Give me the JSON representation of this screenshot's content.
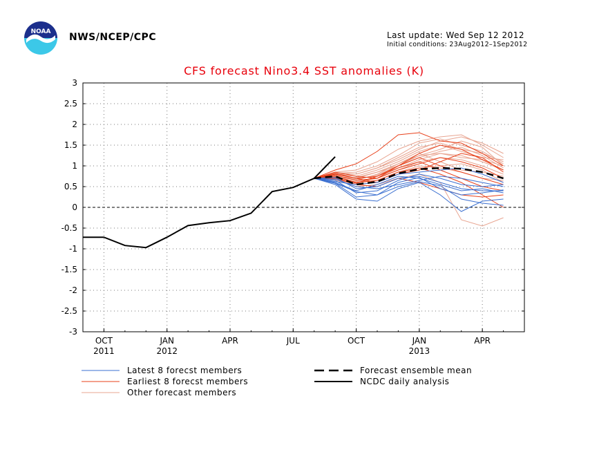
{
  "header": {
    "org": "NWS/NCEP/CPC",
    "last_update": "Last update: Wed Sep 12 2012",
    "initial_conditions": "Initial conditions: 23Aug2012–1Sep2012",
    "logo_icon": "noaa-logo-icon"
  },
  "chart_data": {
    "type": "line",
    "title": "CFS forecast Nino3.4 SST anomalies (K)",
    "xlabel": "",
    "ylabel": "",
    "ylim": [
      -3,
      3
    ],
    "yticks": [
      3,
      2.5,
      2,
      1.5,
      1,
      0.5,
      0,
      -0.5,
      -1,
      -1.5,
      -2,
      -2.5,
      -3
    ],
    "xlim": [
      "2011-09",
      "2013-06"
    ],
    "xticks": [
      {
        "month": "2011-10",
        "label": "OCT",
        "year": "2011"
      },
      {
        "month": "2012-01",
        "label": "JAN",
        "year": "2012"
      },
      {
        "month": "2012-04",
        "label": "APR",
        "year": ""
      },
      {
        "month": "2012-07",
        "label": "JUL",
        "year": ""
      },
      {
        "month": "2012-10",
        "label": "OCT",
        "year": ""
      },
      {
        "month": "2013-01",
        "label": "JAN",
        "year": "2013"
      },
      {
        "month": "2013-04",
        "label": "APR",
        "year": ""
      }
    ],
    "grid": true,
    "zero_line": true,
    "colors": {
      "latest": "#3a6fd0",
      "earliest": "#e8401a",
      "other": "#e8a490",
      "mean": "#000000",
      "obs": "#000000",
      "title": "#e8000b"
    },
    "forecast_months": [
      "2012-08",
      "2012-09",
      "2012-10",
      "2012-11",
      "2012-12",
      "2013-01",
      "2013-02",
      "2013-03",
      "2013-04",
      "2013-05"
    ],
    "series": [
      {
        "name": "NCDC daily analysis",
        "group": "obs",
        "x": [
          "2011-09",
          "2011-10",
          "2011-11",
          "2011-12",
          "2012-01",
          "2012-02",
          "2012-03",
          "2012-04",
          "2012-05",
          "2012-06",
          "2012-07",
          "2012-08",
          "2012-09"
        ],
        "y": [
          -0.72,
          -0.72,
          -0.92,
          -0.97,
          -0.72,
          -0.44,
          -0.37,
          -0.32,
          -0.14,
          0.38,
          0.48,
          0.7,
          1.22
        ]
      },
      {
        "name": "Forecast ensemble mean",
        "group": "mean",
        "y": [
          0.7,
          0.75,
          0.55,
          0.62,
          0.82,
          0.92,
          0.95,
          0.93,
          0.85,
          0.7
        ]
      }
    ],
    "members": [
      {
        "group": "latest",
        "y": [
          0.7,
          0.58,
          0.25,
          0.3,
          0.6,
          0.72,
          0.45,
          0.3,
          0.35,
          0.42
        ]
      },
      {
        "group": "latest",
        "y": [
          0.7,
          0.55,
          0.2,
          0.15,
          0.45,
          0.6,
          0.3,
          -0.1,
          0.15,
          0.2
        ]
      },
      {
        "group": "latest",
        "y": [
          0.7,
          0.65,
          0.35,
          0.4,
          0.65,
          0.8,
          0.7,
          0.55,
          0.5,
          0.55
        ]
      },
      {
        "group": "latest",
        "y": [
          0.7,
          0.72,
          0.45,
          0.5,
          0.7,
          0.75,
          0.6,
          0.45,
          0.4,
          0.4
        ]
      },
      {
        "group": "latest",
        "y": [
          0.7,
          0.6,
          0.4,
          0.55,
          0.75,
          0.7,
          0.55,
          0.4,
          0.45,
          0.35
        ]
      },
      {
        "group": "latest",
        "y": [
          0.7,
          0.68,
          0.5,
          0.45,
          0.55,
          0.65,
          0.75,
          0.7,
          0.6,
          0.5
        ]
      },
      {
        "group": "latest",
        "y": [
          0.7,
          0.62,
          0.55,
          0.6,
          0.8,
          0.85,
          0.9,
          0.95,
          0.8,
          0.6
        ]
      },
      {
        "group": "latest",
        "y": [
          0.7,
          0.58,
          0.38,
          0.3,
          0.5,
          0.62,
          0.52,
          0.2,
          0.1,
          0.05
        ]
      },
      {
        "group": "earliest",
        "y": [
          0.7,
          0.9,
          1.05,
          1.35,
          1.75,
          1.8,
          1.6,
          1.55,
          1.3,
          1.0
        ]
      },
      {
        "group": "earliest",
        "y": [
          0.7,
          0.8,
          0.7,
          0.75,
          1.0,
          1.3,
          1.5,
          1.4,
          1.15,
          0.9
        ]
      },
      {
        "group": "earliest",
        "y": [
          0.7,
          0.75,
          0.6,
          0.65,
          0.85,
          0.95,
          0.8,
          0.6,
          0.3,
          0.0
        ]
      },
      {
        "group": "earliest",
        "y": [
          0.7,
          0.85,
          0.75,
          0.7,
          0.9,
          1.05,
          1.2,
          1.1,
          0.95,
          0.7
        ]
      },
      {
        "group": "earliest",
        "y": [
          0.7,
          0.7,
          0.55,
          0.5,
          0.7,
          0.6,
          0.45,
          0.3,
          0.25,
          0.3
        ]
      },
      {
        "group": "earliest",
        "y": [
          0.7,
          0.78,
          0.65,
          0.7,
          1.0,
          1.2,
          1.0,
          0.85,
          0.7,
          0.55
        ]
      },
      {
        "group": "earliest",
        "y": [
          0.7,
          0.82,
          0.7,
          0.6,
          0.8,
          0.9,
          1.1,
          1.3,
          1.2,
          0.85
        ]
      },
      {
        "group": "earliest",
        "y": [
          0.7,
          0.72,
          0.58,
          0.75,
          0.95,
          1.1,
          0.9,
          0.7,
          0.5,
          0.4
        ]
      },
      {
        "group": "other",
        "y": [
          0.7,
          0.85,
          0.9,
          1.1,
          1.4,
          1.6,
          1.7,
          1.75,
          1.5,
          1.2
        ]
      },
      {
        "group": "other",
        "y": [
          0.7,
          0.8,
          0.8,
          0.95,
          1.2,
          1.45,
          1.55,
          1.4,
          1.3,
          1.1
        ]
      },
      {
        "group": "other",
        "y": [
          0.7,
          0.75,
          0.7,
          0.85,
          1.0,
          1.25,
          1.4,
          1.6,
          1.45,
          1.0
        ]
      },
      {
        "group": "other",
        "y": [
          0.7,
          0.7,
          0.6,
          0.7,
          0.9,
          1.1,
          1.2,
          1.15,
          1.0,
          0.8
        ]
      },
      {
        "group": "other",
        "y": [
          0.7,
          0.78,
          0.65,
          0.8,
          1.05,
          1.3,
          1.1,
          0.9,
          0.85,
          0.75
        ]
      },
      {
        "group": "other",
        "y": [
          0.7,
          0.68,
          0.55,
          0.6,
          0.8,
          0.95,
          1.0,
          1.05,
          0.9,
          0.6
        ]
      },
      {
        "group": "other",
        "y": [
          0.7,
          0.82,
          0.85,
          1.0,
          1.25,
          1.55,
          1.65,
          1.5,
          1.35,
          1.05
        ]
      },
      {
        "group": "other",
        "y": [
          0.7,
          0.74,
          0.62,
          0.7,
          0.95,
          1.15,
          1.3,
          1.25,
          1.1,
          0.9
        ]
      },
      {
        "group": "other",
        "y": [
          0.7,
          0.66,
          0.5,
          0.55,
          0.7,
          0.8,
          0.6,
          -0.3,
          -0.45,
          -0.25
        ]
      },
      {
        "group": "other",
        "y": [
          0.7,
          0.8,
          0.75,
          0.9,
          1.1,
          1.35,
          1.5,
          1.35,
          1.2,
          1.15
        ]
      },
      {
        "group": "other",
        "y": [
          0.7,
          0.72,
          0.68,
          0.78,
          1.0,
          1.2,
          1.35,
          1.45,
          1.25,
          0.95
        ]
      },
      {
        "group": "other",
        "y": [
          0.7,
          0.76,
          0.58,
          0.65,
          0.85,
          1.0,
          0.95,
          0.85,
          0.7,
          0.65
        ]
      },
      {
        "group": "other",
        "y": [
          0.7,
          0.84,
          0.8,
          0.95,
          1.15,
          1.4,
          1.6,
          1.7,
          1.55,
          1.3
        ]
      },
      {
        "group": "other",
        "y": [
          0.7,
          0.7,
          0.72,
          0.85,
          1.05,
          1.25,
          1.3,
          1.2,
          1.15,
          1.0
        ]
      }
    ],
    "legend": [
      {
        "label": "Latest 8 forecst members",
        "style": "latest",
        "placement": "bottom-left"
      },
      {
        "label": "Earliest 8 forecst members",
        "style": "earliest",
        "placement": "bottom-left"
      },
      {
        "label": "Other forecast members",
        "style": "other",
        "placement": "bottom-left"
      },
      {
        "label": "Forecast ensemble mean",
        "style": "mean",
        "placement": "bottom-right"
      },
      {
        "label": "NCDC daily analysis",
        "style": "obs",
        "placement": "bottom-right"
      }
    ]
  }
}
